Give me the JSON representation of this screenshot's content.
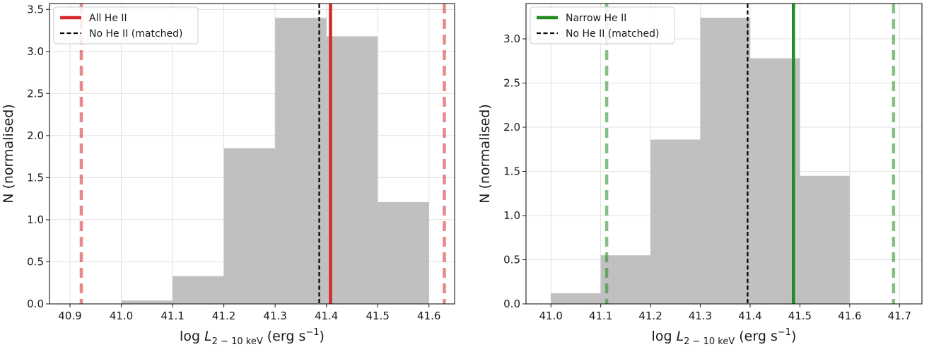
{
  "chart_data": [
    {
      "type": "bar",
      "panel": "left",
      "histogram": {
        "bin_edges": [
          41.0,
          41.1,
          41.2,
          41.3,
          41.4,
          41.5,
          41.6
        ],
        "values": [
          0.04,
          0.33,
          1.85,
          3.4,
          3.18,
          1.21
        ],
        "color": "#bdbdbd"
      },
      "vlines": [
        {
          "x": 41.408,
          "color": "#d62728",
          "style": "solid",
          "name": "All He II"
        },
        {
          "x": 40.922,
          "color": "#d62728",
          "style": "dashed-faint"
        },
        {
          "x": 41.63,
          "color": "#d62728",
          "style": "dashed-faint"
        },
        {
          "x": 41.386,
          "color": "#000000",
          "style": "dashed",
          "name": "No He II (matched)"
        }
      ],
      "xlim": [
        40.86,
        41.65
      ],
      "ylim": [
        0,
        3.57
      ],
      "xticks": [
        "40.9",
        "41.0",
        "41.1",
        "41.2",
        "41.3",
        "41.4",
        "41.5",
        "41.6"
      ],
      "yticks": [
        "0.0",
        "0.5",
        "1.0",
        "1.5",
        "2.0",
        "2.5",
        "3.0",
        "3.5"
      ],
      "xlabel": {
        "pre": "log ",
        "var": "L",
        "sub": "2 − 10 keV",
        "post": " (erg s",
        "sup": "−1",
        "close": ")"
      },
      "ylabel": "N (normalised)",
      "legend": {
        "position": "top-left",
        "entries": [
          {
            "label": "All He II",
            "color": "#d62728",
            "style": "solid"
          },
          {
            "label": "No He II (matched)",
            "color": "#000000",
            "style": "dashed"
          }
        ]
      },
      "grid": true
    },
    {
      "type": "bar",
      "panel": "right",
      "histogram": {
        "bin_edges": [
          41.0,
          41.1,
          41.2,
          41.3,
          41.4,
          41.5,
          41.6
        ],
        "values": [
          0.12,
          0.55,
          1.86,
          3.24,
          2.78,
          1.45
        ],
        "color": "#bdbdbd"
      },
      "vlines": [
        {
          "x": 41.487,
          "color": "#228b22",
          "style": "solid",
          "name": "Narrow He II"
        },
        {
          "x": 41.112,
          "color": "#228b22",
          "style": "dashed-faint"
        },
        {
          "x": 41.688,
          "color": "#228b22",
          "style": "dashed-faint"
        },
        {
          "x": 41.395,
          "color": "#000000",
          "style": "dashed",
          "name": "No He II (matched)"
        }
      ],
      "xlim": [
        40.95,
        41.745
      ],
      "ylim": [
        0,
        3.4
      ],
      "xticks": [
        "41.0",
        "41.1",
        "41.2",
        "41.3",
        "41.4",
        "41.5",
        "41.6",
        "41.7"
      ],
      "yticks": [
        "0.0",
        "0.5",
        "1.0",
        "1.5",
        "2.0",
        "2.5",
        "3.0"
      ],
      "xlabel": {
        "pre": "log ",
        "var": "L",
        "sub": "2 − 10 keV",
        "post": " (erg s",
        "sup": "−1",
        "close": ")"
      },
      "ylabel": "N (normalised)",
      "legend": {
        "position": "top-left",
        "entries": [
          {
            "label": "Narrow He II",
            "color": "#228b22",
            "style": "solid"
          },
          {
            "label": "No He II (matched)",
            "color": "#000000",
            "style": "dashed"
          }
        ]
      },
      "grid": true
    }
  ]
}
